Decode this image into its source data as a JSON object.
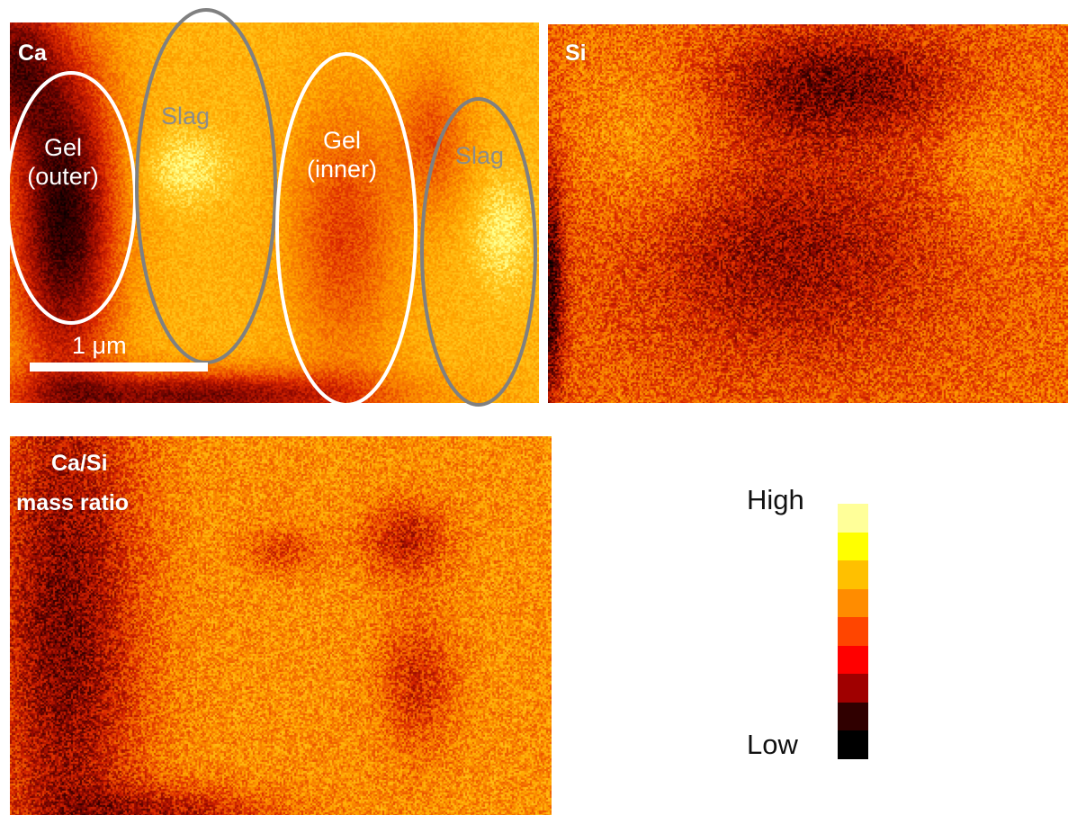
{
  "panels": {
    "ca": {
      "label": "Ca",
      "regions": {
        "gel_outer": [
          "Gel",
          "(outer)"
        ],
        "slag_left": "Slag",
        "gel_inner": [
          "Gel",
          "(inner)"
        ],
        "slag_right": "Slag"
      },
      "scale_bar": "1 μm"
    },
    "si": {
      "label": "Si"
    },
    "ratio": {
      "label_line1": "Ca/Si",
      "label_line2": "mass ratio"
    }
  },
  "colorbar": {
    "high_label": "High",
    "low_label": "Low",
    "colors_high_to_low": [
      "#ffff99",
      "#ffff00",
      "#ffc000",
      "#ff8c00",
      "#ff4500",
      "#ff0000",
      "#a00000",
      "#300000",
      "#000000"
    ]
  },
  "ellipse_colors": {
    "gel": "#ffffff",
    "slag": "#808080"
  }
}
